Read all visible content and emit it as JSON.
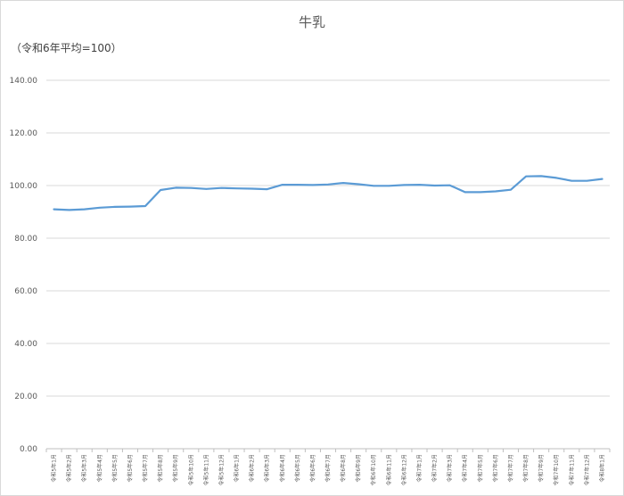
{
  "chart_data": {
    "type": "line",
    "title": "牛乳",
    "unit_label": "（令和6年平均=100）",
    "ylim": [
      0,
      140
    ],
    "yticks": [
      "0.00",
      "20.00",
      "40.00",
      "60.00",
      "80.00",
      "100.00",
      "120.00",
      "140.00"
    ],
    "ytick_values": [
      0,
      20,
      40,
      60,
      80,
      100,
      120,
      140
    ],
    "grid": true,
    "legend": "none",
    "line_color": "#5b9bd5",
    "categories": [
      "令和5年1月",
      "令和5年2月",
      "令和5年3月",
      "令和5年4月",
      "令和5年5月",
      "令和5年6月",
      "令和5年7月",
      "令和5年8月",
      "令和5年9月",
      "令和5年10月",
      "令和5年11月",
      "令和5年12月",
      "令和6年1月",
      "令和6年2月",
      "令和6年3月",
      "令和6年4月",
      "令和6年5月",
      "令和6年6月",
      "令和6年7月",
      "令和6年8月",
      "令和6年9月",
      "令和6年10月",
      "令和6年11月",
      "令和6年12月",
      "令和7年1月",
      "令和7年2月",
      "令和7年3月",
      "令和7年4月",
      "令和7年5月",
      "令和7年6月",
      "令和7年7月",
      "令和7年8月",
      "令和7年9月",
      "令和7年10月",
      "令和7年11月",
      "令和7年12月",
      "令和8年1月"
    ],
    "series": [
      {
        "values": [
          91.0,
          90.7,
          91.0,
          91.6,
          91.9,
          92.0,
          92.2,
          98.3,
          99.2,
          99.1,
          98.7,
          99.1,
          98.9,
          98.8,
          98.6,
          100.3,
          100.3,
          100.2,
          100.4,
          101.0,
          100.5,
          99.9,
          99.9,
          100.2,
          100.3,
          100.0,
          100.1,
          97.5,
          97.5,
          97.8,
          98.4,
          103.5,
          103.6,
          102.9,
          101.8,
          101.8,
          102.5
        ]
      }
    ]
  }
}
